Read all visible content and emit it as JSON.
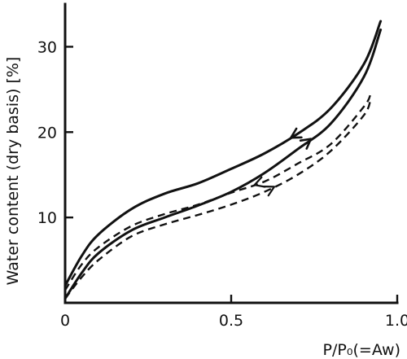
{
  "chart_data": {
    "type": "line",
    "title": "",
    "xlabel": "P/P₀(=Aw)",
    "ylabel": "Water content (dry basis)  [%]",
    "xlim": [
      0,
      1.0
    ],
    "ylim": [
      0,
      35
    ],
    "x_ticks": [
      {
        "value": 0,
        "label": "0"
      },
      {
        "value": 0.5,
        "label": "0.5"
      },
      {
        "value": 1.0,
        "label": "1.0"
      }
    ],
    "y_ticks": [
      {
        "value": 10,
        "label": "10"
      },
      {
        "value": 20,
        "label": "20"
      },
      {
        "value": 30,
        "label": "30"
      }
    ],
    "grid": false,
    "legend": "none",
    "series": [
      {
        "style": "solid",
        "direction": "desorption",
        "x": [
          0.0,
          0.05,
          0.1,
          0.2,
          0.3,
          0.4,
          0.5,
          0.6,
          0.7,
          0.8,
          0.9,
          0.95
        ],
        "y": [
          2.0,
          5.5,
          8.0,
          11.0,
          12.8,
          14.0,
          15.7,
          17.5,
          19.8,
          22.8,
          28.0,
          33.0
        ]
      },
      {
        "style": "solid",
        "direction": "adsorption",
        "x": [
          0.0,
          0.05,
          0.1,
          0.2,
          0.3,
          0.4,
          0.5,
          0.6,
          0.7,
          0.8,
          0.9,
          0.95
        ],
        "y": [
          0.5,
          3.5,
          5.8,
          8.5,
          10.0,
          11.4,
          13.0,
          15.2,
          18.0,
          21.0,
          26.5,
          32.0
        ]
      },
      {
        "style": "dashed",
        "direction": "desorption",
        "x": [
          0.0,
          0.05,
          0.1,
          0.2,
          0.3,
          0.4,
          0.5,
          0.6,
          0.7,
          0.8,
          0.9,
          0.92
        ],
        "y": [
          1.5,
          4.5,
          6.5,
          9.0,
          10.4,
          11.5,
          12.9,
          14.2,
          16.3,
          18.6,
          23.0,
          24.5
        ]
      },
      {
        "style": "dashed",
        "direction": "adsorption",
        "x": [
          0.0,
          0.05,
          0.1,
          0.2,
          0.3,
          0.4,
          0.5,
          0.6,
          0.7,
          0.8,
          0.9,
          0.92
        ],
        "y": [
          0.5,
          3.0,
          5.0,
          7.8,
          9.2,
          10.3,
          11.5,
          13.0,
          15.0,
          17.8,
          22.0,
          24.0
        ]
      }
    ],
    "arrows": [
      {
        "series": 0,
        "x": 0.68,
        "direction": "left"
      },
      {
        "series": 1,
        "x": 0.74,
        "direction": "right"
      },
      {
        "series": 2,
        "x": 0.57,
        "direction": "left"
      },
      {
        "series": 3,
        "x": 0.63,
        "direction": "right"
      }
    ]
  }
}
